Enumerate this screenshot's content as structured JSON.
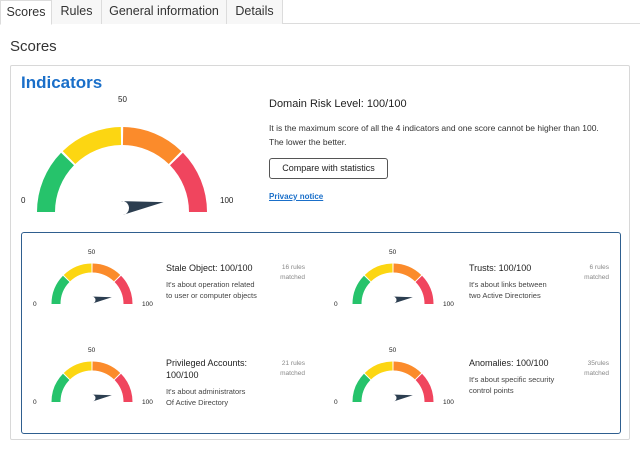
{
  "tabs": [
    {
      "label": "Scores",
      "active": true
    },
    {
      "label": "Rules",
      "active": false
    },
    {
      "label": "General information",
      "active": false
    },
    {
      "label": "Details",
      "active": false
    }
  ],
  "page_title": "Scores",
  "indicators": {
    "title": "Indicators",
    "main_gauge": {
      "min_label": "0",
      "mid_label": "50",
      "max_label": "100",
      "value": 100
    },
    "domain_risk_title": "Domain Risk Level: 100/100",
    "domain_risk_text": "It is the maximum score of all the 4 indicators and one score cannot be higher than 100. The lower the better.",
    "compare_button": "Compare with statistics",
    "privacy_link": "Privacy notice",
    "gauge_colors": {
      "green": "#26c36b",
      "yellow": "#fcd612",
      "orange": "#fb8b2b",
      "red": "#f0455e",
      "needle": "#2c3e50"
    },
    "items": [
      {
        "title": "Stale Object: 100/100",
        "description_line1": "It's about operation related",
        "description_line2": "to user or computer objects",
        "rules_line1": "16 rules",
        "rules_line2": "matched",
        "min_label": "0",
        "mid_label": "50",
        "max_label": "100",
        "value": 100
      },
      {
        "title": "Trusts: 100/100",
        "description_line1": "It's about links between",
        "description_line2": "two Active  Directories",
        "rules_line1": "6 rules",
        "rules_line2": "matched",
        "min_label": "0",
        "mid_label": "50",
        "max_label": "100",
        "value": 100
      },
      {
        "title_line1": "Privileged Accounts:",
        "title_line2": "100/100",
        "description_line1": "It's about administrators",
        "description_line2": "Of Active Directory",
        "rules_line1": "21 rules",
        "rules_line2": "matched",
        "min_label": "0",
        "mid_label": "50",
        "max_label": "100",
        "value": 100
      },
      {
        "title": "Anomalies: 100/100",
        "description_line1": "It's about specific security",
        "description_line2": "control points",
        "rules_line1": "35rules",
        "rules_line2": "matched",
        "min_label": "0",
        "mid_label": "50",
        "max_label": "100",
        "value": 100
      }
    ]
  }
}
